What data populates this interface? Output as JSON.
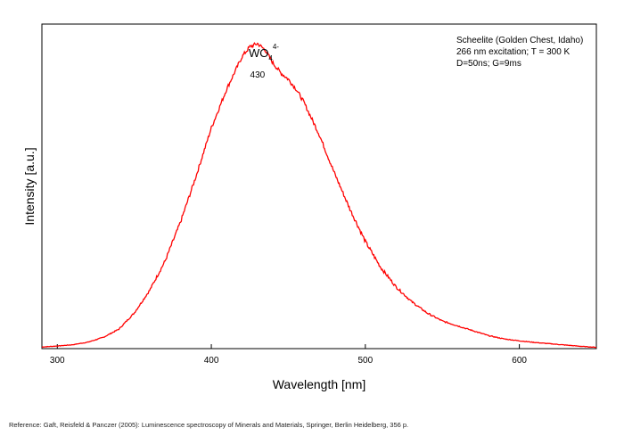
{
  "chart_data": {
    "type": "line",
    "xlabel": "Wavelength [nm]",
    "ylabel": "Intensity [a.u.]",
    "xlim": [
      290,
      650
    ],
    "ylim": [
      0,
      1.0
    ],
    "x_ticks": [
      300,
      400,
      500,
      600
    ],
    "y_ticks_shown": false,
    "grid": false,
    "line_color": "#ff0000",
    "legend_lines": [
      "Scheelite (Golden Chest, Idaho)",
      "266 nm excitation; T = 300 K",
      "D=50ns; G=9ms"
    ],
    "legend_placement": "top-right",
    "peak_annotation": {
      "species_base": "WO",
      "species_sub": "4",
      "species_sup": "4-",
      "peak_label": "430",
      "x": 430
    },
    "series": [
      {
        "x": [
          290,
          300,
          310,
          320,
          330,
          340,
          350,
          360,
          370,
          380,
          390,
          400,
          410,
          415,
          420,
          425,
          430,
          435,
          440,
          445,
          450,
          455,
          460,
          470,
          480,
          490,
          500,
          510,
          520,
          530,
          540,
          550,
          560,
          570,
          580,
          590,
          600,
          610,
          620,
          630,
          640,
          650
        ],
        "values": [
          0.005,
          0.008,
          0.012,
          0.02,
          0.035,
          0.06,
          0.11,
          0.18,
          0.27,
          0.39,
          0.53,
          0.68,
          0.8,
          0.85,
          0.9,
          0.93,
          0.94,
          0.92,
          0.88,
          0.85,
          0.83,
          0.8,
          0.76,
          0.66,
          0.54,
          0.43,
          0.33,
          0.25,
          0.19,
          0.145,
          0.11,
          0.085,
          0.07,
          0.055,
          0.04,
          0.03,
          0.024,
          0.019,
          0.015,
          0.011,
          0.007,
          0.004
        ]
      }
    ]
  },
  "reference": "Reference: Gaft, Reisfeld & Panczer (2005): Luminescence spectroscopy of Minerals and Materials, Springer, Berlin Heidelberg, 356 p."
}
